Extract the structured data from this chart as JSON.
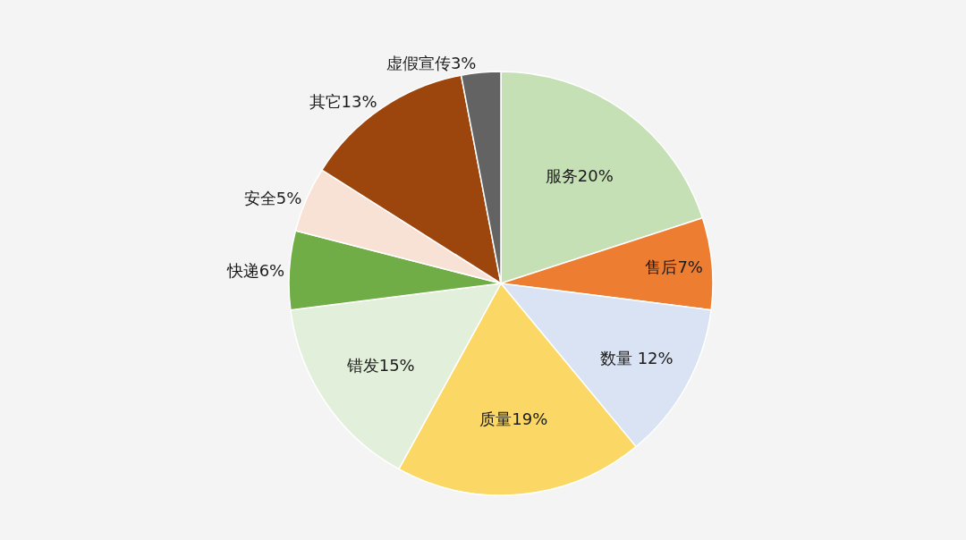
{
  "chart_data": {
    "type": "pie",
    "categories": [
      "服务",
      "售后",
      "数量",
      "质量",
      "错发",
      "快递",
      "安全",
      "其它",
      "虚假宣传"
    ],
    "values": [
      20,
      7,
      12,
      19,
      15,
      6,
      5,
      13,
      3
    ],
    "value_labels": [
      "20%",
      "7%",
      " 12%",
      "19%",
      "15%",
      "6%",
      "5%",
      "13%",
      "3%"
    ],
    "colors": [
      "#c5e0b4",
      "#ed7d31",
      "#dae3f3",
      "#fbd866",
      "#e2efda",
      "#70ad47",
      "#f8e1d5",
      "#9c460d",
      "#636363"
    ],
    "legend": false
  }
}
